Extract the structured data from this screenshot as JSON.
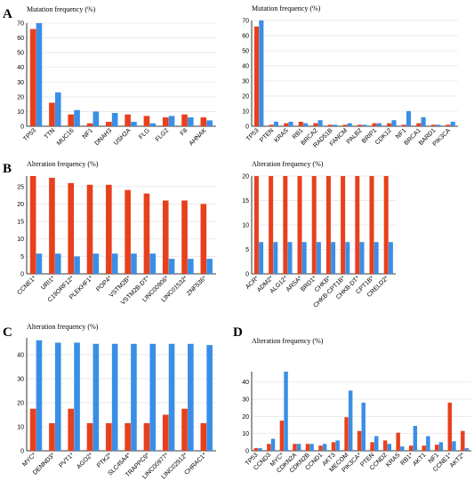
{
  "colors": {
    "red": "#E8401C",
    "blue": "#3A8EE6"
  },
  "panels": [
    {
      "letter": "A"
    },
    {
      "letter": "B"
    },
    {
      "letter": "C"
    },
    {
      "letter": "D"
    }
  ],
  "chart_data": [
    {
      "type": "bar",
      "panel": "A",
      "title": "Mutation frequency (%)",
      "ylim": [
        0,
        70
      ],
      "yticks": [
        0,
        10,
        20,
        30,
        40,
        50,
        60,
        70
      ],
      "categories": [
        "TP53",
        "TTN",
        "MUC16",
        "NF1",
        "DNAH3",
        "USH2A",
        "FLG",
        "FLG2",
        "F8",
        "AHNAK"
      ],
      "series": [
        {
          "color": "red",
          "values": [
            66,
            16,
            8,
            2,
            3,
            8,
            7,
            6,
            8,
            6
          ]
        },
        {
          "color": "blue",
          "values": [
            70,
            23,
            11,
            10,
            9,
            3,
            2,
            7,
            6,
            4
          ]
        }
      ]
    },
    {
      "type": "bar",
      "panel": "A",
      "title": "Mutation frequency (%)",
      "ylim": [
        0,
        70
      ],
      "yticks": [
        0,
        10,
        20,
        30,
        40,
        50,
        60,
        70
      ],
      "categories": [
        "TP53",
        "PTEN",
        "KRAS",
        "RB1",
        "BRCA2",
        "RAD51B",
        "FANCM",
        "PALB2",
        "BRIP1",
        "CDK12",
        "NF1",
        "BRCA1",
        "BARD1",
        "PIK3CA"
      ],
      "series": [
        {
          "color": "red",
          "values": [
            66,
            1,
            2,
            3,
            2,
            1,
            1,
            1,
            2,
            2,
            1,
            2,
            1,
            1
          ]
        },
        {
          "color": "blue",
          "values": [
            70,
            3,
            3,
            2,
            4,
            1,
            2,
            1,
            2,
            4,
            10,
            6,
            1,
            3
          ]
        }
      ]
    },
    {
      "type": "bar",
      "panel": "B",
      "title": "Alteration frequency (%)",
      "ylim": [
        0,
        28
      ],
      "yticks": [
        0,
        5,
        10,
        15,
        20,
        25
      ],
      "categories": [
        "CCNE1*",
        "URI1*",
        "C19ORF12*",
        "PLEKHF1*",
        "POP4*",
        "VSTM2B*",
        "VSTM2B-DT*",
        "LINC00906*",
        "LINC01532*",
        "ZNF536*"
      ],
      "series": [
        {
          "color": "red",
          "values": [
            28,
            27.5,
            26,
            25.5,
            25.5,
            24,
            23,
            21,
            21,
            20
          ]
        },
        {
          "color": "blue",
          "values": [
            5.8,
            5.8,
            5,
            5.8,
            5.8,
            5.8,
            5.8,
            4.3,
            4.3,
            4.3
          ]
        }
      ]
    },
    {
      "type": "bar",
      "panel": "B",
      "title": "Alteration frequency (%)",
      "ylim": [
        0,
        20
      ],
      "yticks": [
        0,
        5,
        10,
        15,
        20
      ],
      "categories": [
        "ACR*",
        "ADM2*",
        "ALG12*",
        "ARSA*",
        "BRD1*",
        "CHKB*",
        "CHKB-CPT1B*",
        "CHKB-DT*",
        "CPT1B*",
        "CRELD2*"
      ],
      "series": [
        {
          "color": "red",
          "values": [
            20,
            20,
            20,
            20,
            20,
            20,
            20,
            20,
            20,
            20
          ]
        },
        {
          "color": "blue",
          "values": [
            6.5,
            6.5,
            6.5,
            6.5,
            6.5,
            6.5,
            6.5,
            6.5,
            6.5,
            6.5
          ]
        }
      ]
    },
    {
      "type": "bar",
      "panel": "C",
      "title": "Alteration frequency (%)",
      "ylim": [
        0,
        47
      ],
      "yticks": [
        0,
        10,
        20,
        30,
        40
      ],
      "categories": [
        "MYC*",
        "DENND3*",
        "PVT1*",
        "AGO2*",
        "PTK2*",
        "SLC45A4*",
        "TRAPPC9*",
        "LINC00977*",
        "LINC02912*",
        "CHRAC1*"
      ],
      "series": [
        {
          "color": "red",
          "values": [
            17.5,
            11.5,
            17.5,
            11.5,
            11.5,
            11.5,
            11.5,
            15,
            17.5,
            11.5
          ]
        },
        {
          "color": "blue",
          "values": [
            46,
            45,
            45,
            44.5,
            44.5,
            44.5,
            44.5,
            44.5,
            44.5,
            44
          ]
        }
      ]
    },
    {
      "type": "bar",
      "panel": "D",
      "title": "Alteration frequency (%)",
      "ylim": [
        0,
        46
      ],
      "yticks": [
        0,
        10,
        20,
        30,
        40
      ],
      "categories": [
        "TP53",
        "CCND3",
        "MYC*",
        "CDKN2A",
        "CDKN2B",
        "CCND1",
        "AKT3",
        "MECOM",
        "PIK3CA*",
        "PTEN",
        "CCND2",
        "KRAS",
        "RB1*",
        "AKT1",
        "NF1",
        "CCNE1*",
        "AKT2*"
      ],
      "series": [
        {
          "color": "red",
          "values": [
            1.5,
            4,
            17.5,
            4,
            4,
            3,
            5,
            19.5,
            11.5,
            5,
            6,
            10.5,
            3,
            3,
            3.5,
            28,
            11.5
          ]
        },
        {
          "color": "blue",
          "values": [
            1.5,
            7,
            46,
            4,
            4,
            4,
            6,
            35,
            28,
            8.5,
            4,
            2.5,
            14.5,
            8.5,
            5,
            5.5,
            1.5
          ]
        }
      ]
    }
  ]
}
